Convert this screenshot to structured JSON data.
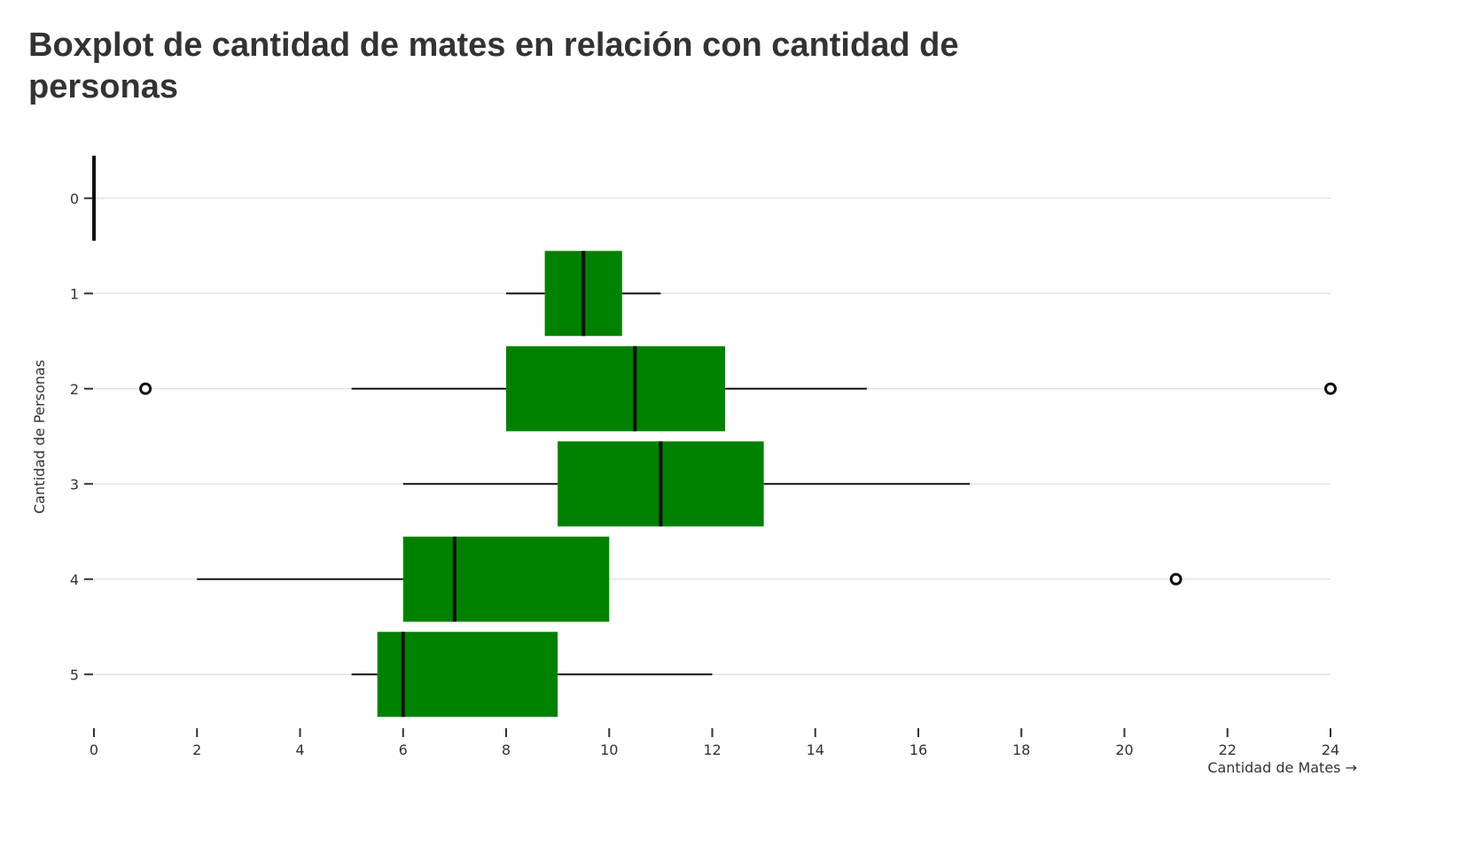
{
  "chart_data": {
    "type": "boxplot",
    "title": "Boxplot de cantidad de mates en relación con cantidad de personas",
    "xlabel": "Cantidad de Mates →",
    "ylabel": "Cantidad de Personas",
    "orientation": "horizontal",
    "xlim": [
      0,
      24
    ],
    "x_ticks": [
      0,
      2,
      4,
      6,
      8,
      10,
      12,
      14,
      16,
      18,
      20,
      22,
      24
    ],
    "categories": [
      "0",
      "1",
      "2",
      "3",
      "4",
      "5"
    ],
    "grid": "horizontal",
    "box_color": "#008000",
    "median_color": "#111111",
    "groups": [
      {
        "category": "0",
        "min": 0,
        "q1": 0,
        "median": 0,
        "q3": 0,
        "max": 0,
        "outliers": []
      },
      {
        "category": "1",
        "min": 8,
        "q1": 8.75,
        "median": 9.5,
        "q3": 10.25,
        "max": 11,
        "outliers": []
      },
      {
        "category": "2",
        "min": 5,
        "q1": 8,
        "median": 10.5,
        "q3": 12.25,
        "max": 15,
        "outliers": [
          1,
          24
        ]
      },
      {
        "category": "3",
        "min": 6,
        "q1": 9,
        "median": 11,
        "q3": 13,
        "max": 17,
        "outliers": []
      },
      {
        "category": "4",
        "min": 2,
        "q1": 6,
        "median": 7,
        "q3": 10,
        "max": 10,
        "outliers": [
          21
        ]
      },
      {
        "category": "5",
        "min": 5,
        "q1": 5.5,
        "median": 6,
        "q3": 9,
        "max": 12,
        "outliers": []
      }
    ]
  }
}
